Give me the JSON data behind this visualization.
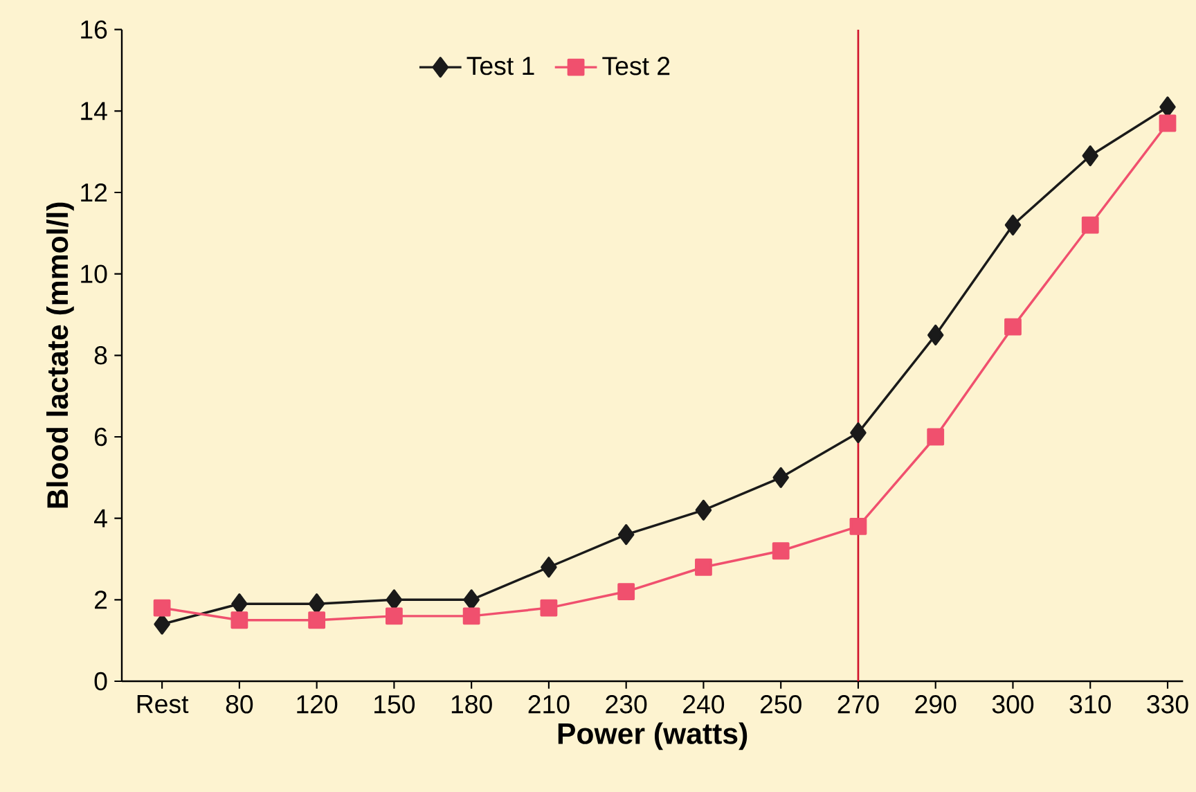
{
  "chart_data": {
    "type": "line",
    "xlabel": "Power (watts)",
    "ylabel": "Blood lactate (mmol/l)",
    "categories": [
      "Rest",
      "80",
      "120",
      "150",
      "180",
      "210",
      "230",
      "240",
      "250",
      "270",
      "290",
      "300",
      "310",
      "330"
    ],
    "series": [
      {
        "name": "Test 1",
        "color": "#1a1a1a",
        "marker": "diamond",
        "values": [
          1.4,
          1.9,
          1.9,
          2.0,
          2.0,
          2.8,
          3.6,
          4.2,
          5.0,
          6.1,
          8.5,
          11.2,
          12.9,
          14.1
        ]
      },
      {
        "name": "Test 2",
        "color": "#f0506e",
        "marker": "square",
        "values": [
          1.8,
          1.5,
          1.5,
          1.6,
          1.6,
          1.8,
          2.2,
          2.8,
          3.2,
          3.8,
          6.0,
          8.7,
          11.2,
          13.7
        ]
      }
    ],
    "ylim": [
      0,
      16
    ],
    "yticks": [
      0,
      2,
      4,
      6,
      8,
      10,
      12,
      14,
      16
    ],
    "ref_lines": [
      {
        "axis": "x",
        "value": "270",
        "color": "#d0142c"
      }
    ],
    "legend": "top",
    "grid": false,
    "line_style": "solid"
  }
}
